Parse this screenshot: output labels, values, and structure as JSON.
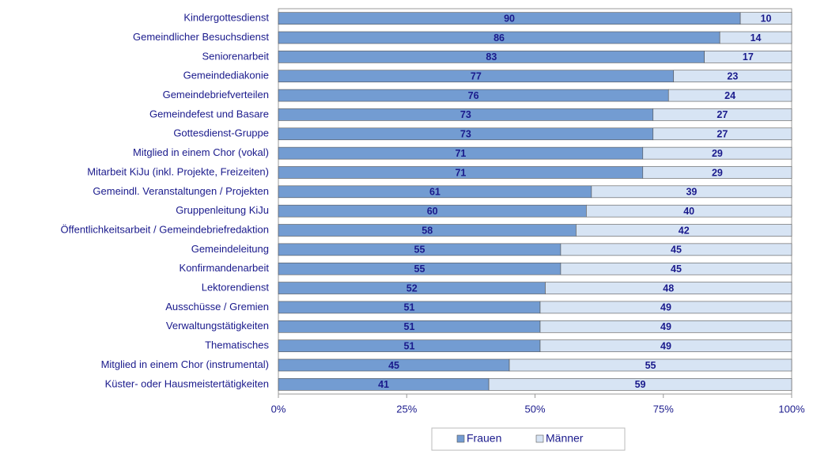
{
  "chart_data": {
    "type": "stacked-bar-horizontal",
    "categories": [
      "Kindergottesdienst",
      "Gemeindlicher Besuchsdienst",
      "Seniorenarbeit",
      "Gemeindediakonie",
      "Gemeindebriefverteilen",
      "Gemeindefest und Basare",
      "Gottesdienst-Gruppe",
      "Mitglied in einem Chor (vokal)",
      "Mitarbeit KiJu (inkl. Projekte, Freizeiten)",
      "Gemeindl. Veranstaltungen / Projekten",
      "Gruppenleitung KiJu",
      "Öffentlichkeitsarbeit / Gemeindebriefredaktion",
      "Gemeindeleitung",
      "Konfirmandenarbeit",
      "Lektorendienst",
      "Ausschüsse / Gremien",
      "Verwaltungstätigkeiten",
      "Thematisches",
      "Mitglied in einem Chor (instrumental)",
      "Küster-  oder Hausmeistertätigkeiten"
    ],
    "series": [
      {
        "name": "Frauen",
        "color": "#739cd2",
        "values": [
          90,
          86,
          83,
          77,
          76,
          73,
          73,
          71,
          71,
          61,
          60,
          58,
          55,
          55,
          52,
          51,
          51,
          51,
          45,
          41
        ]
      },
      {
        "name": "Männer",
        "color": "#d7e4f4",
        "values": [
          10,
          14,
          17,
          23,
          24,
          27,
          27,
          29,
          29,
          39,
          40,
          42,
          45,
          45,
          48,
          49,
          49,
          49,
          55,
          59
        ]
      }
    ],
    "xlim": [
      0,
      100
    ],
    "xticks": [
      {
        "value": 0,
        "label": "0%"
      },
      {
        "value": 25,
        "label": "25%"
      },
      {
        "value": 50,
        "label": "50%"
      },
      {
        "value": 75,
        "label": "75%"
      },
      {
        "value": 100,
        "label": "100%"
      }
    ],
    "grid": false,
    "legend": "bottom"
  }
}
